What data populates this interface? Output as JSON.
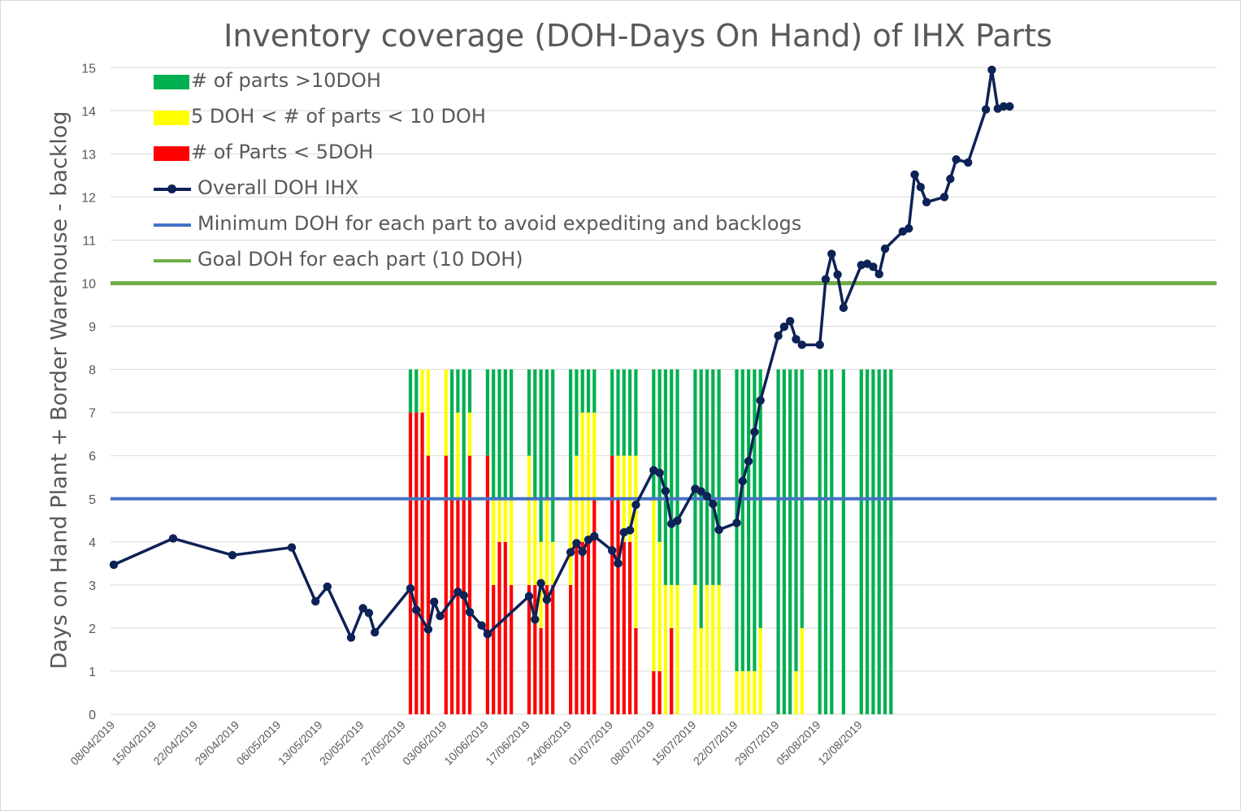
{
  "chart_data": {
    "type": "bar+line",
    "title": "Inventory coverage (DOH-Days On Hand) of IHX Parts",
    "ylabel": "Days on Hand Plant + Border Warehouse - backlog",
    "xlabel": "",
    "ylim": [
      0,
      15
    ],
    "yticks": [
      0,
      1,
      2,
      3,
      4,
      5,
      6,
      7,
      8,
      9,
      10,
      11,
      12,
      13,
      14,
      15
    ],
    "x_tick_labels": [
      "08/04/2019",
      "15/04/2019",
      "22/04/2019",
      "29/04/2019",
      "06/05/2019",
      "13/05/2019",
      "20/05/2019",
      "27/05/2019",
      "03/06/2019",
      "10/06/2019",
      "17/06/2019",
      "24/06/2019",
      "01/07/2019",
      "08/07/2019",
      "15/07/2019",
      "22/07/2019",
      "29/07/2019",
      "05/08/2019",
      "12/08/2019"
    ],
    "x_start_date": "08/04/2019",
    "x_days_total": 131,
    "grid": true,
    "legend_position": "top-left",
    "colors": {
      "green": "#00B050",
      "yellow": "#FFFF00",
      "red": "#FF0000",
      "overall": "#0D2256",
      "minimum": "#4472C4",
      "goal": "#70AD47",
      "text": "#595959",
      "grid": "#d9d9d9"
    },
    "legend": [
      {
        "label": "# of parts >10DOH",
        "kind": "box",
        "color": "#00B050"
      },
      {
        "label": "5 DOH < # of parts < 10 DOH",
        "kind": "box",
        "color": "#FFFF00"
      },
      {
        "label": "# of Parts < 5DOH",
        "kind": "box",
        "color": "#FF0000"
      },
      {
        "label": "Overall DOH IHX",
        "kind": "line-marker",
        "color": "#0D2256"
      },
      {
        "label": "Minimum DOH for each part to avoid expediting and backlogs",
        "kind": "line",
        "color": "#4472C4"
      },
      {
        "label": "Goal DOH for each part (10 DOH)",
        "kind": "line",
        "color": "#70AD47"
      }
    ],
    "stacked_bars": {
      "series_order": [
        "# of Parts < 5DOH",
        "5 DOH < # of parts < 10 DOH",
        "# of parts >10DOH"
      ],
      "bars": [
        {
          "day": 50,
          "red": 7,
          "yellow": 0,
          "green": 1
        },
        {
          "day": 51,
          "red": 7,
          "yellow": 0,
          "green": 1
        },
        {
          "day": 52,
          "red": 7,
          "yellow": 1,
          "green": 0
        },
        {
          "day": 53,
          "red": 6,
          "yellow": 2,
          "green": 0
        },
        {
          "day": 56,
          "red": 6,
          "yellow": 2,
          "green": 0
        },
        {
          "day": 57,
          "red": 5,
          "yellow": 0,
          "green": 3
        },
        {
          "day": 58,
          "red": 5,
          "yellow": 2,
          "green": 1
        },
        {
          "day": 59,
          "red": 5,
          "yellow": 0,
          "green": 3
        },
        {
          "day": 60,
          "red": 6,
          "yellow": 1,
          "green": 1
        },
        {
          "day": 63,
          "red": 6,
          "yellow": 0,
          "green": 2
        },
        {
          "day": 64,
          "red": 3,
          "yellow": 2,
          "green": 3
        },
        {
          "day": 65,
          "red": 4,
          "yellow": 1,
          "green": 3
        },
        {
          "day": 66,
          "red": 4,
          "yellow": 1,
          "green": 3
        },
        {
          "day": 67,
          "red": 3,
          "yellow": 2,
          "green": 3
        },
        {
          "day": 70,
          "red": 3,
          "yellow": 3,
          "green": 2
        },
        {
          "day": 71,
          "red": 3,
          "yellow": 2,
          "green": 3
        },
        {
          "day": 72,
          "red": 2,
          "yellow": 2,
          "green": 4
        },
        {
          "day": 73,
          "red": 3,
          "yellow": 2,
          "green": 3
        },
        {
          "day": 74,
          "red": 3,
          "yellow": 1,
          "green": 4
        },
        {
          "day": 77,
          "red": 3,
          "yellow": 2,
          "green": 3
        },
        {
          "day": 78,
          "red": 4,
          "yellow": 2,
          "green": 2
        },
        {
          "day": 79,
          "red": 4,
          "yellow": 3,
          "green": 1
        },
        {
          "day": 80,
          "red": 4,
          "yellow": 3,
          "green": 1
        },
        {
          "day": 81,
          "red": 5,
          "yellow": 2,
          "green": 1
        },
        {
          "day": 84,
          "red": 6,
          "yellow": 0,
          "green": 2
        },
        {
          "day": 85,
          "red": 5,
          "yellow": 1,
          "green": 2
        },
        {
          "day": 86,
          "red": 4,
          "yellow": 2,
          "green": 2
        },
        {
          "day": 87,
          "red": 4,
          "yellow": 2,
          "green": 2
        },
        {
          "day": 88,
          "red": 2,
          "yellow": 4,
          "green": 2
        },
        {
          "day": 91,
          "red": 1,
          "yellow": 4,
          "green": 3
        },
        {
          "day": 92,
          "red": 1,
          "yellow": 3,
          "green": 4
        },
        {
          "day": 93,
          "red": 0,
          "yellow": 3,
          "green": 5
        },
        {
          "day": 94,
          "red": 2,
          "yellow": 1,
          "green": 5
        },
        {
          "day": 95,
          "red": 0,
          "yellow": 3,
          "green": 5
        },
        {
          "day": 98,
          "red": 0,
          "yellow": 3,
          "green": 5
        },
        {
          "day": 99,
          "red": 0,
          "yellow": 2,
          "green": 6
        },
        {
          "day": 100,
          "red": 0,
          "yellow": 3,
          "green": 5
        },
        {
          "day": 101,
          "red": 0,
          "yellow": 3,
          "green": 5
        },
        {
          "day": 102,
          "red": 0,
          "yellow": 3,
          "green": 5
        },
        {
          "day": 105,
          "red": 0,
          "yellow": 1,
          "green": 7
        },
        {
          "day": 106,
          "red": 0,
          "yellow": 1,
          "green": 7
        },
        {
          "day": 107,
          "red": 0,
          "yellow": 1,
          "green": 7
        },
        {
          "day": 108,
          "red": 0,
          "yellow": 1,
          "green": 7
        },
        {
          "day": 109,
          "red": 0,
          "yellow": 2,
          "green": 6
        },
        {
          "day": 112,
          "red": 0,
          "yellow": 0,
          "green": 8
        },
        {
          "day": 113,
          "red": 0,
          "yellow": 0,
          "green": 8
        },
        {
          "day": 114,
          "red": 0,
          "yellow": 0,
          "green": 8
        },
        {
          "day": 115,
          "red": 0,
          "yellow": 1,
          "green": 7
        },
        {
          "day": 116,
          "red": 0,
          "yellow": 2,
          "green": 6
        },
        {
          "day": 119,
          "red": 0,
          "yellow": 0,
          "green": 8
        },
        {
          "day": 120,
          "red": 0,
          "yellow": 0,
          "green": 8
        },
        {
          "day": 121,
          "red": 0,
          "yellow": 0,
          "green": 8
        },
        {
          "day": 123,
          "red": 0,
          "yellow": 0,
          "green": 8
        },
        {
          "day": 126,
          "red": 0,
          "yellow": 0,
          "green": 8
        },
        {
          "day": 127,
          "red": 0,
          "yellow": 0,
          "green": 8
        },
        {
          "day": 128,
          "red": 0,
          "yellow": 0,
          "green": 8
        },
        {
          "day": 129,
          "red": 0,
          "yellow": 0,
          "green": 8
        },
        {
          "day": 130,
          "red": 0,
          "yellow": 0,
          "green": 8
        },
        {
          "day": 131,
          "red": 0,
          "yellow": 0,
          "green": 8
        }
      ]
    },
    "overall_doh": [
      {
        "day": 0,
        "value": 3.47
      },
      {
        "day": 10,
        "value": 4.08
      },
      {
        "day": 20,
        "value": 3.69
      },
      {
        "day": 30,
        "value": 3.87
      },
      {
        "day": 34,
        "value": 2.62
      },
      {
        "day": 36,
        "value": 2.96
      },
      {
        "day": 40,
        "value": 1.78
      },
      {
        "day": 42,
        "value": 2.46
      },
      {
        "day": 43,
        "value": 2.35
      },
      {
        "day": 44,
        "value": 1.9
      },
      {
        "day": 50,
        "value": 2.92
      },
      {
        "day": 51,
        "value": 2.42
      },
      {
        "day": 53,
        "value": 1.97
      },
      {
        "day": 54,
        "value": 2.61
      },
      {
        "day": 55,
        "value": 2.28
      },
      {
        "day": 58,
        "value": 2.84
      },
      {
        "day": 59,
        "value": 2.76
      },
      {
        "day": 60,
        "value": 2.37
      },
      {
        "day": 62,
        "value": 2.06
      },
      {
        "day": 63,
        "value": 1.86
      },
      {
        "day": 70,
        "value": 2.74
      },
      {
        "day": 71,
        "value": 2.2
      },
      {
        "day": 72,
        "value": 3.04
      },
      {
        "day": 73,
        "value": 2.66
      },
      {
        "day": 77,
        "value": 3.76
      },
      {
        "day": 78,
        "value": 3.97
      },
      {
        "day": 79,
        "value": 3.77
      },
      {
        "day": 80,
        "value": 4.05
      },
      {
        "day": 81,
        "value": 4.13
      },
      {
        "day": 84,
        "value": 3.8
      },
      {
        "day": 85,
        "value": 3.5
      },
      {
        "day": 86,
        "value": 4.22
      },
      {
        "day": 87,
        "value": 4.27
      },
      {
        "day": 88,
        "value": 4.86
      },
      {
        "day": 91,
        "value": 5.66
      },
      {
        "day": 92,
        "value": 5.6
      },
      {
        "day": 93,
        "value": 5.18
      },
      {
        "day": 94,
        "value": 4.42
      },
      {
        "day": 95,
        "value": 4.49
      },
      {
        "day": 98,
        "value": 5.23
      },
      {
        "day": 99,
        "value": 5.17
      },
      {
        "day": 100,
        "value": 5.06
      },
      {
        "day": 101,
        "value": 4.88
      },
      {
        "day": 102,
        "value": 4.28
      },
      {
        "day": 105,
        "value": 4.44
      },
      {
        "day": 106,
        "value": 5.41
      },
      {
        "day": 107,
        "value": 5.87
      },
      {
        "day": 108,
        "value": 6.55
      },
      {
        "day": 109,
        "value": 7.28
      },
      {
        "day": 112,
        "value": 8.78
      },
      {
        "day": 113,
        "value": 8.99
      },
      {
        "day": 114,
        "value": 9.12
      },
      {
        "day": 115,
        "value": 8.7
      },
      {
        "day": 116,
        "value": 8.57
      },
      {
        "day": 119,
        "value": 8.57
      },
      {
        "day": 120,
        "value": 10.09
      },
      {
        "day": 121,
        "value": 10.68
      },
      {
        "day": 122,
        "value": 10.2
      },
      {
        "day": 123,
        "value": 9.43
      },
      {
        "day": 126,
        "value": 10.42
      },
      {
        "day": 127,
        "value": 10.45
      },
      {
        "day": 128,
        "value": 10.38
      },
      {
        "day": 129,
        "value": 10.21
      },
      {
        "day": 130,
        "value": 10.8
      }
    ],
    "overall_doh_late": [
      {
        "day": 133,
        "value": 11.2
      },
      {
        "day": 134,
        "value": 11.27
      },
      {
        "day": 135,
        "value": 12.52
      },
      {
        "day": 136,
        "value": 12.23
      },
      {
        "day": 137,
        "value": 11.88
      },
      {
        "day": 140,
        "value": 12.0
      },
      {
        "day": 141,
        "value": 12.42
      },
      {
        "day": 142,
        "value": 12.87
      },
      {
        "day": 144,
        "value": 12.8
      },
      {
        "day": 147,
        "value": 14.03
      },
      {
        "day": 148,
        "value": 14.95
      },
      {
        "day": 149,
        "value": 14.05
      },
      {
        "day": 150,
        "value": 14.1
      },
      {
        "day": 151,
        "value": 14.1
      }
    ],
    "minimum_doh": 5,
    "goal_doh": 10
  }
}
